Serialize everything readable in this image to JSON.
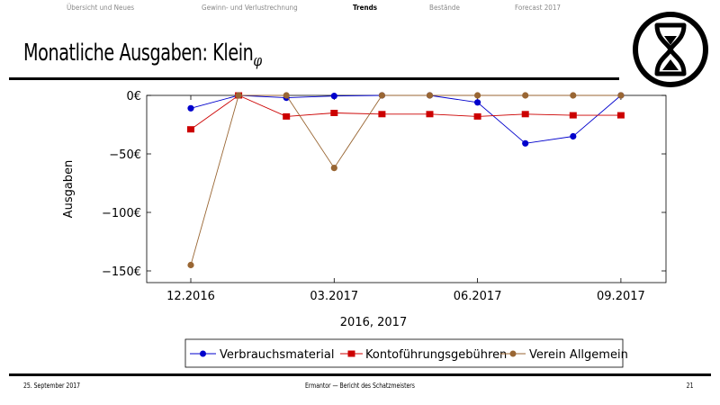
{
  "nav": {
    "items": [
      "Übersicht und Neues",
      "Gewinn- und Verlustrechnung",
      "Trends",
      "Bestände",
      "Forecast 2017"
    ],
    "active": "Trends"
  },
  "header": {
    "title": "Monatliche Ausgaben: Klein",
    "title_subscript": "φ"
  },
  "footer": {
    "date": "25. September 2017",
    "center": "Ermantor — Bericht des Schatzmeisters",
    "page": "21"
  },
  "chart_data": {
    "type": "line",
    "title": "",
    "xlabel": "2016, 2017",
    "ylabel": "Ausgaben",
    "x": [
      "12.2016",
      "01.2017",
      "02.2017",
      "03.2017",
      "04.2017",
      "05.2017",
      "06.2017",
      "07.2017",
      "08.2017",
      "09.2017"
    ],
    "xticks": [
      "12.2016",
      "03.2017",
      "06.2017",
      "09.2017"
    ],
    "yticks": [
      0,
      -50,
      -100,
      -150
    ],
    "ytick_labels": [
      "0€",
      "−50€",
      "−100€",
      "−150€"
    ],
    "ylim": [
      -158,
      0
    ],
    "legend_placement": "bottom-center",
    "grid": false,
    "series": [
      {
        "name": "Verbrauchsmaterial",
        "color": "#0000cc",
        "marker": "circle",
        "values": [
          -11,
          0,
          -2,
          -0.5,
          0,
          0,
          -6,
          -41,
          -35,
          0
        ]
      },
      {
        "name": "Kontoführungsgebühren",
        "color": "#cc0000",
        "marker": "square",
        "values": [
          -29,
          0,
          -18,
          -15,
          -16,
          -16,
          -18,
          -16,
          -17,
          -17
        ]
      },
      {
        "name": "Verein Allgemein",
        "color": "#996633",
        "marker": "circle",
        "values": [
          -145,
          0,
          0,
          -62,
          0,
          0,
          0,
          0,
          0,
          0
        ]
      }
    ]
  }
}
